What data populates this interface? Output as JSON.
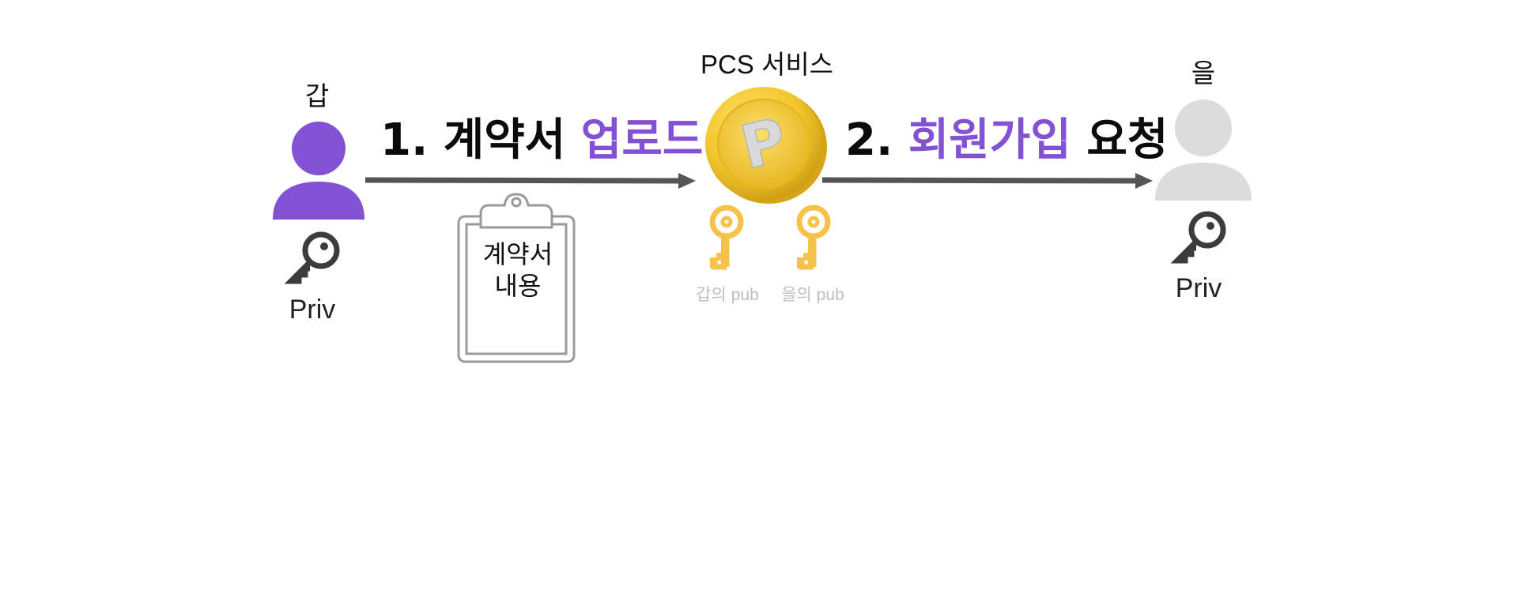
{
  "party_a": {
    "name": "갑",
    "key_label": "Priv",
    "color": "#8352D4"
  },
  "party_b": {
    "name": "을",
    "key_label": "Priv",
    "color": "#DCDCDC"
  },
  "service": {
    "name": "PCS 서비스",
    "coin_symbol": "P",
    "pub_keys": [
      "갑의 pub",
      "을의 pub"
    ],
    "coin_color": "#F2C62C",
    "key_color": "#F5C24A"
  },
  "step1": {
    "prefix": "1. 계약서 ",
    "accent": "업로드"
  },
  "step2": {
    "prefix": "2. ",
    "accent": "회원가입",
    "suffix": " 요청"
  },
  "document": {
    "line1": "계약서",
    "line2": "내용"
  },
  "colors": {
    "accent": "#8352D4",
    "arrow": "#555555"
  }
}
